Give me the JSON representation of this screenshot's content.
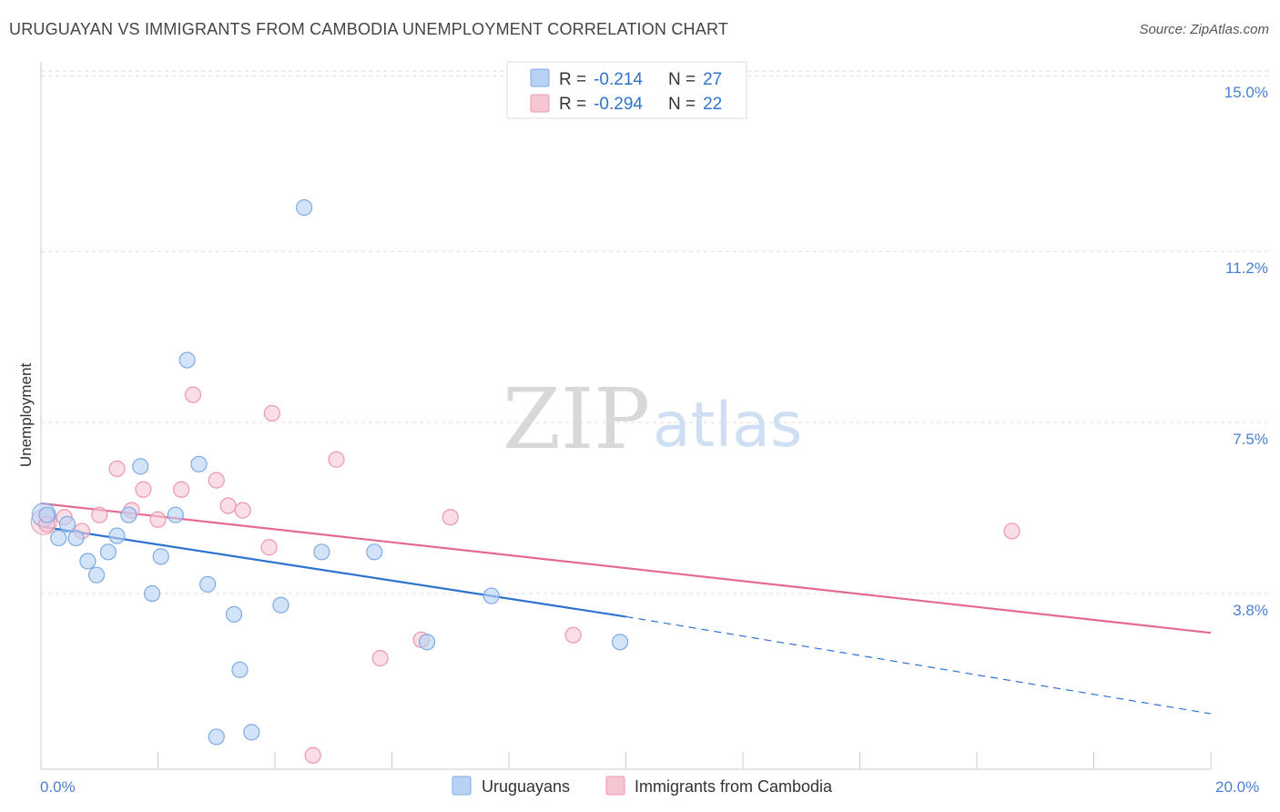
{
  "header": {
    "title": "URUGUAYAN VS IMMIGRANTS FROM CAMBODIA UNEMPLOYMENT CORRELATION CHART",
    "source": "Source: ZipAtlas.com"
  },
  "watermark": {
    "zip": "ZIP",
    "atlas": "atlas"
  },
  "colors": {
    "blue_fill": "#b8d2f3",
    "blue_stroke": "#7eaae4",
    "blue_line": "#2f73d0",
    "pink_fill": "#f7c6d3",
    "pink_stroke": "#ec97b0",
    "pink_line": "#e46996",
    "tick_text": "#4a7fd0",
    "grid": "#dddddd"
  },
  "chart_data": {
    "type": "scatter",
    "title": "URUGUAYAN VS IMMIGRANTS FROM CAMBODIA UNEMPLOYMENT CORRELATION CHART",
    "xlabel": "",
    "ylabel": "Unemployment",
    "xlim": [
      0,
      20
    ],
    "ylim": [
      0,
      15.3
    ],
    "x_ticks": [
      "0.0%",
      "20.0%"
    ],
    "y_ticks": [
      {
        "value": 3.8,
        "label": "3.8%"
      },
      {
        "value": 7.5,
        "label": "7.5%"
      },
      {
        "value": 11.2,
        "label": "11.2%"
      },
      {
        "value": 15.0,
        "label": "15.0%"
      }
    ],
    "grid": "horizontal dashed",
    "legend_position": "top-center",
    "stats": [
      {
        "r_label": "R =",
        "r_value": "-0.214",
        "n_label": "N =",
        "n_value": "27"
      },
      {
        "r_label": "R =",
        "r_value": "-0.294",
        "n_label": "N =",
        "n_value": "22"
      }
    ],
    "series": [
      {
        "name": "Uruguayans",
        "color": "#7eaae4",
        "points": [
          [
            0.1,
            5.5
          ],
          [
            0.3,
            5.0
          ],
          [
            0.45,
            5.3
          ],
          [
            0.6,
            5.0
          ],
          [
            0.8,
            4.5
          ],
          [
            0.95,
            4.2
          ],
          [
            1.15,
            4.7
          ],
          [
            1.3,
            5.05
          ],
          [
            1.5,
            5.5
          ],
          [
            1.7,
            6.55
          ],
          [
            1.9,
            3.8
          ],
          [
            2.05,
            4.6
          ],
          [
            2.3,
            5.5
          ],
          [
            2.5,
            8.85
          ],
          [
            2.7,
            6.6
          ],
          [
            2.85,
            4.0
          ],
          [
            3.0,
            0.7
          ],
          [
            3.3,
            3.35
          ],
          [
            3.4,
            2.15
          ],
          [
            3.6,
            0.8
          ],
          [
            4.1,
            3.55
          ],
          [
            4.5,
            12.15
          ],
          [
            4.8,
            4.7
          ],
          [
            5.7,
            4.7
          ],
          [
            6.6,
            2.75
          ],
          [
            7.7,
            3.75
          ],
          [
            9.9,
            2.75
          ]
        ],
        "trend": {
          "x": [
            0,
            10
          ],
          "y": [
            5.25,
            3.3
          ]
        },
        "trend_extension": {
          "x": [
            10,
            20
          ],
          "y": [
            3.3,
            1.2
          ]
        }
      },
      {
        "name": "Immigrants from Cambodia",
        "color": "#ec97b0",
        "points": [
          [
            0.1,
            5.3
          ],
          [
            0.4,
            5.45
          ],
          [
            0.7,
            5.15
          ],
          [
            1.0,
            5.5
          ],
          [
            1.3,
            6.5
          ],
          [
            1.55,
            5.6
          ],
          [
            1.75,
            6.05
          ],
          [
            2.0,
            5.4
          ],
          [
            2.4,
            6.05
          ],
          [
            2.6,
            8.1
          ],
          [
            3.0,
            6.25
          ],
          [
            3.2,
            5.7
          ],
          [
            3.45,
            5.6
          ],
          [
            3.9,
            4.8
          ],
          [
            3.95,
            7.7
          ],
          [
            4.65,
            0.3
          ],
          [
            5.05,
            6.7
          ],
          [
            5.8,
            2.4
          ],
          [
            6.5,
            2.8
          ],
          [
            7.0,
            5.45
          ],
          [
            9.1,
            2.9
          ],
          [
            16.6,
            5.15
          ]
        ],
        "trend": {
          "x": [
            0,
            20
          ],
          "y": [
            5.75,
            2.95
          ]
        }
      }
    ]
  }
}
